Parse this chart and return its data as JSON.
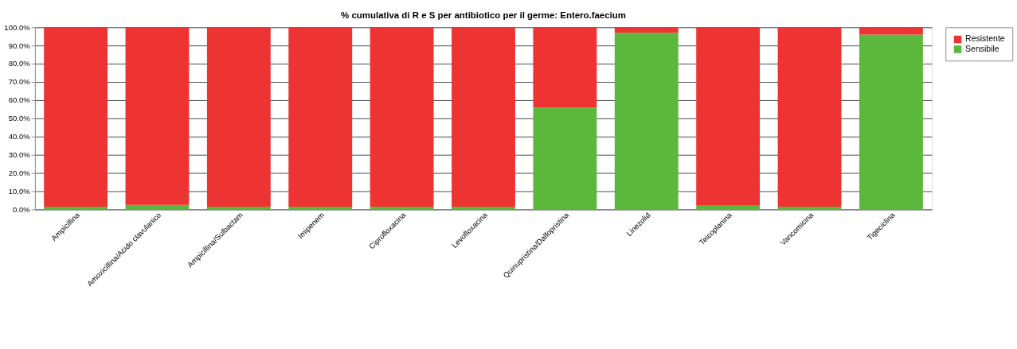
{
  "chart_data": {
    "type": "bar",
    "title": "% cumulativa di R e S per antibiotico per il germe: Entero.faecium",
    "categories": [
      "Ampicillina",
      "Amoxicillina/Acido clavulanico",
      "Ampicillina/Sulbactam",
      "Imipenem",
      "Ciprofloxacina",
      "Levofloxacina",
      "Quinupristina/Dalfopristina",
      "Linezolid",
      "Teicoplanina",
      "Vancomicina",
      "Tigeciclina"
    ],
    "stacked": true,
    "series": [
      {
        "name": "Sensibile",
        "color": "#5cb83c",
        "values": [
          1.5,
          2.5,
          1.5,
          1.5,
          1.5,
          1.5,
          56,
          97,
          2,
          1.5,
          96
        ]
      },
      {
        "name": "Resistente",
        "color": "#ee3333",
        "values": [
          98.5,
          97.5,
          98.5,
          98.5,
          98.5,
          98.5,
          44,
          3,
          98,
          98.5,
          4
        ]
      }
    ],
    "ylim": [
      0,
      100
    ],
    "yticks": [
      {
        "value": 0,
        "label": "0.0%"
      },
      {
        "value": 10,
        "label": "10.0%"
      },
      {
        "value": 20,
        "label": "20.0%"
      },
      {
        "value": 30,
        "label": "30.0%"
      },
      {
        "value": 40,
        "label": "40.0%"
      },
      {
        "value": 50,
        "label": "50.0%"
      },
      {
        "value": 60,
        "label": "60.0%"
      },
      {
        "value": 70,
        "label": "70.0%"
      },
      {
        "value": 80,
        "label": "80.0%"
      },
      {
        "value": 90,
        "label": "90.0%"
      },
      {
        "value": 100,
        "label": "100.0%"
      }
    ],
    "grid": "y",
    "legend": "right"
  }
}
